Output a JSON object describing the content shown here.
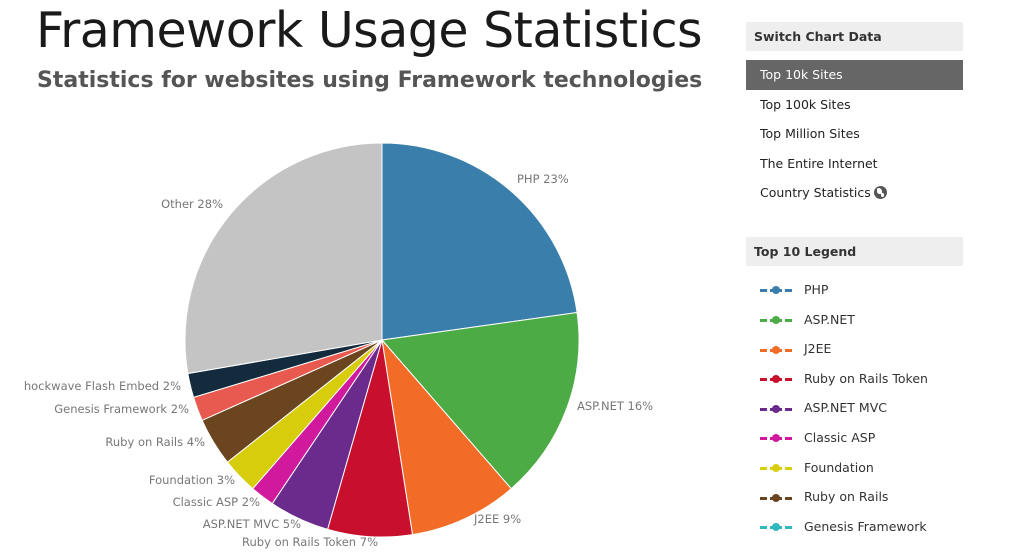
{
  "page": {
    "title": "Framework Usage Statistics",
    "subtitle": "Statistics for websites using Framework technologies"
  },
  "switch_panel": {
    "header": "Switch Chart Data",
    "items": [
      {
        "label": "Top 10k Sites",
        "active": true
      },
      {
        "label": "Top 100k Sites",
        "active": false
      },
      {
        "label": "Top Million Sites",
        "active": false
      },
      {
        "label": "The Entire Internet",
        "active": false
      },
      {
        "label": "Country Statistics",
        "active": false,
        "icon": "globe-icon"
      }
    ]
  },
  "legend_panel": {
    "header": "Top 10 Legend",
    "items": [
      {
        "label": "PHP",
        "color": "#3a7fab"
      },
      {
        "label": "ASP.NET",
        "color": "#4cab45"
      },
      {
        "label": "J2EE",
        "color": "#f26c28"
      },
      {
        "label": "Ruby on Rails Token",
        "color": "#c8102e"
      },
      {
        "label": "ASP.NET MVC",
        "color": "#6a2b8c"
      },
      {
        "label": "Classic ASP",
        "color": "#d0199d"
      },
      {
        "label": "Foundation",
        "color": "#d8cd0c"
      },
      {
        "label": "Ruby on Rails",
        "color": "#6b4420"
      },
      {
        "label": "Genesis Framework",
        "color": "#2fb8be"
      }
    ]
  },
  "chart_data": {
    "type": "pie",
    "title": "Framework Usage Statistics",
    "subtitle": "Statistics for websites using Framework technologies",
    "slices": [
      {
        "label": "PHP 23%",
        "name": "PHP",
        "value": 23,
        "color": "#3a7fab"
      },
      {
        "label": "ASP.NET 16%",
        "name": "ASP.NET",
        "value": 16,
        "color": "#4cab45"
      },
      {
        "label": "J2EE 9%",
        "name": "J2EE",
        "value": 9,
        "color": "#f26c28"
      },
      {
        "label": "Ruby on Rails Token 7%",
        "name": "Ruby on Rails Token",
        "value": 7,
        "color": "#c8102e"
      },
      {
        "label": "ASP.NET MVC 5%",
        "name": "ASP.NET MVC",
        "value": 5,
        "color": "#6a2b8c"
      },
      {
        "label": "Classic ASP 2%",
        "name": "Classic ASP",
        "value": 2,
        "color": "#d0199d"
      },
      {
        "label": "Foundation 3%",
        "name": "Foundation",
        "value": 3,
        "color": "#d8cd0c"
      },
      {
        "label": "Ruby on Rails 4%",
        "name": "Ruby on Rails",
        "value": 4,
        "color": "#6b4420"
      },
      {
        "label": "Genesis Framework 2%",
        "name": "Genesis Framework",
        "value": 2,
        "color": "#e85a4f"
      },
      {
        "label": "hockwave Flash Embed 2%",
        "name": "hockwave Flash Embed",
        "value": 2,
        "color": "#132b3c"
      },
      {
        "label": "Other 28%",
        "name": "Other",
        "value": 28,
        "color": "#c4c4c4"
      }
    ]
  }
}
